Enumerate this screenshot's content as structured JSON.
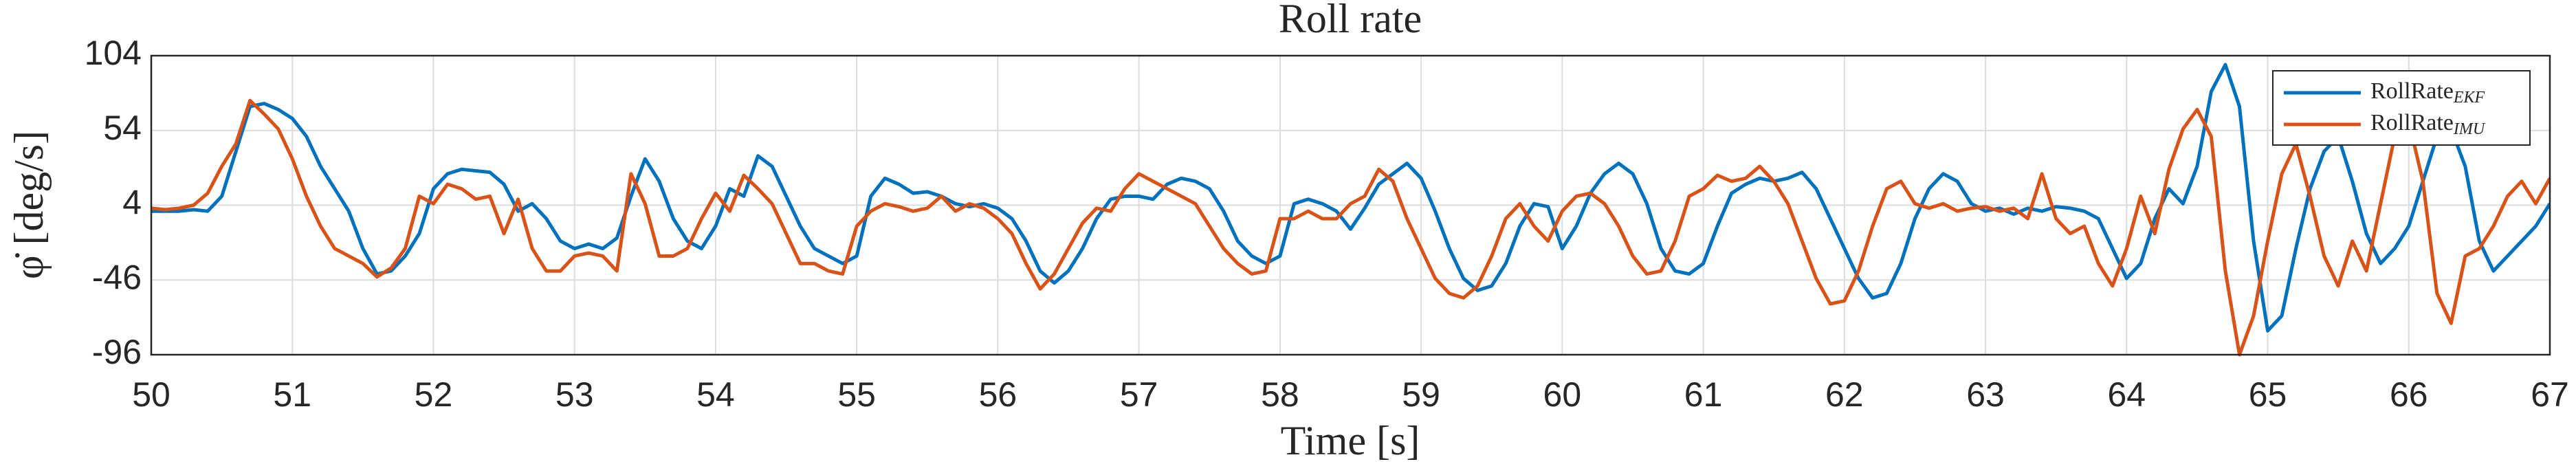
{
  "chart_data": {
    "type": "line",
    "title": "Roll rate",
    "xlabel": "Time [s]",
    "ylabel": "φ̇ [deg/s]",
    "x": [
      50,
      50.1,
      50.2,
      50.3,
      50.4,
      50.5,
      50.6,
      50.7,
      50.8,
      50.9,
      51,
      51.1,
      51.2,
      51.3,
      51.4,
      51.5,
      51.6,
      51.7,
      51.8,
      51.9,
      52,
      52.1,
      52.2,
      52.3,
      52.4,
      52.5,
      52.6,
      52.7,
      52.8,
      52.9,
      53,
      53.1,
      53.2,
      53.3,
      53.4,
      53.5,
      53.6,
      53.7,
      53.8,
      53.9,
      54,
      54.1,
      54.2,
      54.3,
      54.4,
      54.5,
      54.6,
      54.7,
      54.8,
      54.9,
      55,
      55.1,
      55.2,
      55.3,
      55.4,
      55.5,
      55.6,
      55.7,
      55.8,
      55.9,
      56,
      56.1,
      56.2,
      56.3,
      56.4,
      56.5,
      56.6,
      56.7,
      56.8,
      56.9,
      57,
      57.1,
      57.2,
      57.3,
      57.4,
      57.5,
      57.6,
      57.7,
      57.8,
      57.9,
      58,
      58.1,
      58.2,
      58.3,
      58.4,
      58.5,
      58.6,
      58.7,
      58.8,
      58.9,
      59,
      59.1,
      59.2,
      59.3,
      59.4,
      59.5,
      59.6,
      59.7,
      59.8,
      59.9,
      60,
      60.1,
      60.2,
      60.3,
      60.4,
      60.5,
      60.6,
      60.7,
      60.8,
      60.9,
      61,
      61.1,
      61.2,
      61.3,
      61.4,
      61.5,
      61.6,
      61.7,
      61.8,
      61.9,
      62,
      62.1,
      62.2,
      62.3,
      62.4,
      62.5,
      62.6,
      62.7,
      62.8,
      62.9,
      63,
      63.1,
      63.2,
      63.3,
      63.4,
      63.5,
      63.6,
      63.7,
      63.8,
      63.9,
      64,
      64.1,
      64.2,
      64.3,
      64.4,
      64.5,
      64.6,
      64.7,
      64.8,
      64.9,
      65,
      65.1,
      65.2,
      65.3,
      65.4,
      65.5,
      65.6,
      65.7,
      65.8,
      65.9,
      66,
      66.1,
      66.2,
      66.3,
      66.4,
      66.5,
      66.6,
      66.7,
      66.8,
      66.9,
      67
    ],
    "series": [
      {
        "name": "RollRate",
        "name_sub": "EKF",
        "color": "#0072BD",
        "values": [
          0,
          0,
          0,
          1,
          0,
          10,
          40,
          70,
          72,
          68,
          62,
          50,
          30,
          15,
          0,
          -25,
          -42,
          -40,
          -30,
          -15,
          15,
          25,
          28,
          27,
          26,
          18,
          0,
          5,
          -5,
          -20,
          -25,
          -22,
          -25,
          -18,
          10,
          35,
          20,
          -5,
          -20,
          -25,
          -10,
          15,
          10,
          37,
          30,
          10,
          -10,
          -25,
          -30,
          -35,
          -30,
          10,
          22,
          18,
          12,
          13,
          10,
          5,
          3,
          5,
          2,
          -5,
          -20,
          -40,
          -48,
          -40,
          -25,
          -5,
          8,
          10,
          10,
          8,
          18,
          22,
          20,
          15,
          0,
          -20,
          -30,
          -35,
          -30,
          5,
          8,
          5,
          0,
          -12,
          2,
          18,
          25,
          32,
          22,
          0,
          -25,
          -45,
          -53,
          -50,
          -35,
          -10,
          5,
          3,
          -25,
          -10,
          12,
          25,
          32,
          25,
          5,
          -25,
          -40,
          -42,
          -35,
          -10,
          12,
          18,
          22,
          20,
          22,
          26,
          15,
          -5,
          -25,
          -45,
          -58,
          -55,
          -35,
          -5,
          15,
          25,
          20,
          5,
          0,
          2,
          -2,
          2,
          0,
          3,
          2,
          0,
          -5,
          -25,
          -45,
          -35,
          -5,
          15,
          5,
          30,
          80,
          98,
          70,
          -20,
          -80,
          -70,
          -25,
          15,
          40,
          50,
          20,
          -15,
          -35,
          -25,
          -10,
          20,
          50,
          55,
          30,
          -20,
          -40,
          -30,
          -20,
          -10,
          5
        ]
      },
      {
        "name": "RollRate",
        "name_sub": "IMU",
        "color": "#D95319",
        "values": [
          2,
          1,
          2,
          4,
          12,
          30,
          45,
          74,
          65,
          55,
          35,
          10,
          -10,
          -25,
          -30,
          -35,
          -44,
          -38,
          -25,
          10,
          5,
          18,
          15,
          8,
          10,
          -15,
          8,
          -25,
          -40,
          -40,
          -30,
          -28,
          -30,
          -40,
          25,
          5,
          -30,
          -30,
          -25,
          -5,
          12,
          0,
          24,
          15,
          5,
          -15,
          -35,
          -35,
          -40,
          -42,
          -10,
          0,
          5,
          3,
          0,
          2,
          10,
          0,
          5,
          2,
          -5,
          -15,
          -35,
          -52,
          -42,
          -25,
          -8,
          2,
          0,
          15,
          25,
          20,
          15,
          10,
          5,
          -10,
          -25,
          -35,
          -42,
          -40,
          -5,
          -5,
          0,
          -5,
          -5,
          5,
          10,
          28,
          20,
          -5,
          -25,
          -45,
          -55,
          -58,
          -50,
          -30,
          -5,
          5,
          -10,
          -20,
          0,
          10,
          12,
          5,
          -10,
          -30,
          -42,
          -40,
          -20,
          10,
          15,
          24,
          20,
          22,
          30,
          20,
          5,
          -20,
          -45,
          -62,
          -60,
          -40,
          -10,
          15,
          20,
          5,
          2,
          5,
          0,
          2,
          3,
          0,
          2,
          -5,
          25,
          -5,
          -15,
          -10,
          -35,
          -50,
          -25,
          10,
          -15,
          28,
          55,
          68,
          50,
          -40,
          -96,
          -70,
          -20,
          25,
          45,
          10,
          -30,
          -50,
          -20,
          -40,
          5,
          50,
          60,
          20,
          -55,
          -75,
          -30,
          -25,
          -10,
          10,
          20,
          5,
          22
        ]
      }
    ],
    "xlim": [
      50,
      67
    ],
    "xticks": [
      50,
      51,
      52,
      53,
      54,
      55,
      56,
      57,
      58,
      59,
      60,
      61,
      62,
      63,
      64,
      65,
      66,
      67
    ],
    "ylim": [
      -96,
      104
    ],
    "yticks": [
      -96,
      -46,
      4,
      54,
      104
    ],
    "grid": true,
    "legend": "upper right"
  }
}
